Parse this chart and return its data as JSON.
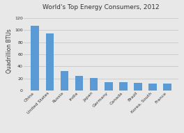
{
  "title": "World's Top Energy Consumers, 2012",
  "ylabel": "Quadrillion BTUs",
  "categories": [
    "China",
    "United States",
    "Russia",
    "India",
    "Japan",
    "Germany",
    "Canada",
    "Brazil",
    "Korea, South",
    "France"
  ],
  "values": [
    107,
    95,
    32,
    24,
    21,
    14,
    14,
    12,
    11,
    11
  ],
  "bar_color": "#5b9bd5",
  "ylim": [
    0,
    130
  ],
  "yticks": [
    0,
    20,
    40,
    60,
    80,
    100,
    120
  ],
  "bg_color": "#e8e8e8",
  "plot_bg": "#e8e8e8",
  "title_fontsize": 6.5,
  "ylabel_fontsize": 5.5,
  "tick_fontsize": 4.5,
  "bar_width": 0.55
}
